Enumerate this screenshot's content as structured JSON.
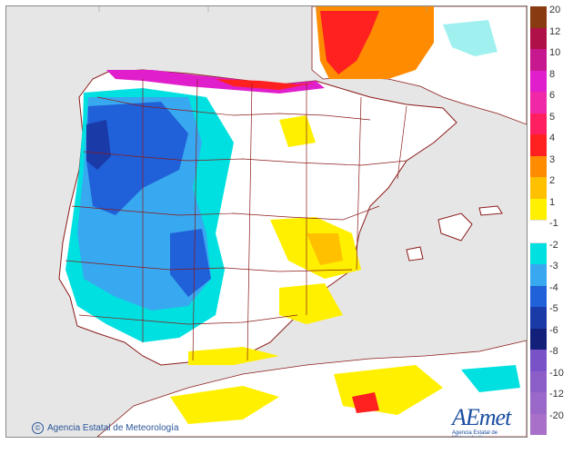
{
  "credit": "Agencia Estatal de Meteorología",
  "logo": {
    "word": "AEmet",
    "subtitle": "Agencia Estatal de Meteorología"
  },
  "legend": {
    "labels": [
      "20",
      "12",
      "10",
      "8",
      "6",
      "5",
      "4",
      "3",
      "2",
      "1",
      "-1",
      "-2",
      "-3",
      "-4",
      "-5",
      "-6",
      "-8",
      "-10",
      "-12",
      "-20"
    ],
    "colors": [
      "#8a3a10",
      "#b01048",
      "#c81890",
      "#e01ecc",
      "#f028a8",
      "#ff1f60",
      "#ff2020",
      "#ff8c00",
      "#ffc000",
      "#fff000",
      "#ffffff",
      "#00e0e0",
      "#38a8f0",
      "#2060d8",
      "#1a3aa8",
      "#12207a",
      "#7a52c8",
      "#8c5ec8",
      "#9a68c8",
      "#a870c8"
    ]
  }
}
